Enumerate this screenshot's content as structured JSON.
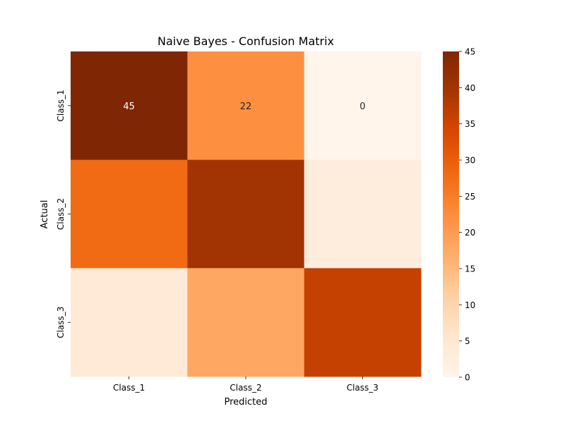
{
  "chart_data": {
    "type": "heatmap",
    "title": "Naive Bayes - Confusion Matrix",
    "xlabel": "Predicted",
    "ylabel": "Actual",
    "x_categories": [
      "Class_1",
      "Class_2",
      "Class_3"
    ],
    "y_categories": [
      "Class_1",
      "Class_2",
      "Class_3"
    ],
    "values": [
      [
        45,
        22,
        0
      ],
      [
        28,
        40,
        3
      ],
      [
        4,
        18,
        36
      ]
    ],
    "annotations": [
      [
        "45",
        "22",
        "0"
      ],
      [
        "",
        "",
        ""
      ],
      [
        "",
        "",
        ""
      ]
    ],
    "colormap": "Oranges",
    "colorbar": {
      "range": [
        0,
        45
      ],
      "ticks": [
        0,
        5,
        10,
        15,
        20,
        25,
        30,
        35,
        40,
        45
      ]
    },
    "colors": {
      "low": "#fff5eb",
      "high": "#7f2704"
    }
  }
}
